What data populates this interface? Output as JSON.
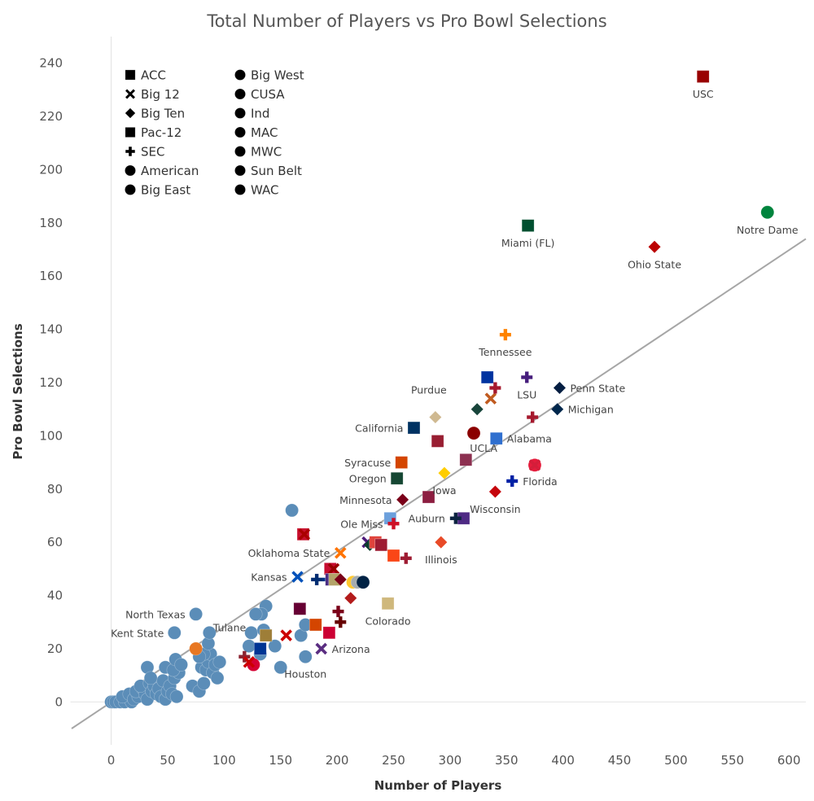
{
  "chart_data": {
    "type": "scatter",
    "title": "Total Number of Players vs Pro Bowl Selections",
    "xlabel": "Number of Players",
    "ylabel": "Pro Bowl Selections",
    "xlim": [
      -35,
      615
    ],
    "ylim": [
      -10,
      250
    ],
    "xticks": [
      0,
      50,
      100,
      150,
      200,
      250,
      300,
      350,
      400,
      450,
      500,
      550,
      600
    ],
    "yticks": [
      0,
      20,
      40,
      60,
      80,
      100,
      120,
      140,
      160,
      180,
      200,
      220,
      240
    ],
    "trendline": {
      "x1": -35,
      "y1": -10,
      "x2": 615,
      "y2": 174,
      "color": "#a6a6a6"
    },
    "default_color": "#5b8db8",
    "legend": [
      {
        "name": "ACC",
        "shape": "square"
      },
      {
        "name": "Big 12",
        "shape": "x"
      },
      {
        "name": "Big Ten",
        "shape": "diamond"
      },
      {
        "name": "Pac-12",
        "shape": "square"
      },
      {
        "name": "SEC",
        "shape": "plus"
      },
      {
        "name": "American",
        "shape": "circle"
      },
      {
        "name": "Big East",
        "shape": "circle"
      },
      {
        "name": "Big West",
        "shape": "circle"
      },
      {
        "name": "CUSA",
        "shape": "circle"
      },
      {
        "name": "Ind",
        "shape": "circle"
      },
      {
        "name": "MAC",
        "shape": "circle"
      },
      {
        "name": "MWC",
        "shape": "circle"
      },
      {
        "name": "Sun Belt",
        "shape": "circle"
      },
      {
        "name": "WAC",
        "shape": "circle"
      }
    ],
    "labeled_points": [
      {
        "name": "USC",
        "x": 524,
        "y": 235,
        "shape": "square",
        "color": "#990000",
        "label_pos": "below"
      },
      {
        "name": "Notre Dame",
        "x": 581,
        "y": 184,
        "shape": "circle",
        "color": "#00843d",
        "label_pos": "below"
      },
      {
        "name": "Miami (FL)",
        "x": 369,
        "y": 179,
        "shape": "square",
        "color": "#005030",
        "label_pos": "below"
      },
      {
        "name": "Ohio State",
        "x": 481,
        "y": 171,
        "shape": "diamond",
        "color": "#bb0000",
        "label_pos": "below"
      },
      {
        "name": "Tennessee",
        "x": 349,
        "y": 138,
        "shape": "plus",
        "color": "#ff8200",
        "label_pos": "below"
      },
      {
        "name": "Penn State",
        "x": 397,
        "y": 118,
        "shape": "diamond",
        "color": "#041e42",
        "label_pos": "right"
      },
      {
        "name": "LSU",
        "x": 368,
        "y": 122,
        "shape": "plus",
        "color": "#461d7c",
        "label_pos": "below"
      },
      {
        "name": "Michigan",
        "x": 395,
        "y": 110,
        "shape": "diamond",
        "color": "#00274c",
        "label_pos": "right"
      },
      {
        "name": "Purdue",
        "x": 287,
        "y": 107,
        "shape": "diamond",
        "color": "#cfb991",
        "label_pos": "above-left"
      },
      {
        "name": "California",
        "x": 268,
        "y": 103,
        "shape": "square",
        "color": "#003262",
        "label_pos": "left"
      },
      {
        "name": "Alabama",
        "x": 341,
        "y": 99,
        "shape": "square",
        "color": "#2f6fcf",
        "label_pos": "right"
      },
      {
        "name": "UCLA",
        "x": 314,
        "y": 91,
        "shape": "square",
        "color": "#8c3050",
        "label_pos": "right-up"
      },
      {
        "name": "Syracuse",
        "x": 257,
        "y": 90,
        "shape": "square",
        "color": "#d44500",
        "label_pos": "left"
      },
      {
        "name": "Oregon",
        "x": 253,
        "y": 84,
        "shape": "square",
        "color": "#154733",
        "label_pos": "left"
      },
      {
        "name": "Iowa",
        "x": 295,
        "y": 86,
        "shape": "diamond",
        "color": "#ffcd00",
        "label_pos": "below"
      },
      {
        "name": "Florida",
        "x": 355,
        "y": 83,
        "shape": "plus",
        "color": "#0021a5",
        "label_pos": "right"
      },
      {
        "name": "Minnesota",
        "x": 258,
        "y": 76,
        "shape": "diamond",
        "color": "#7a0019",
        "label_pos": "left"
      },
      {
        "name": "Wisconsin",
        "x": 340,
        "y": 79,
        "shape": "diamond",
        "color": "#c5050c",
        "label_pos": "below"
      },
      {
        "name": "Auburn",
        "x": 305,
        "y": 69,
        "shape": "plus",
        "color": "#0c2340",
        "label_pos": "left"
      },
      {
        "name": "Ole Miss",
        "x": 250,
        "y": 67,
        "shape": "plus",
        "color": "#ce1126",
        "label_pos": "left"
      },
      {
        "name": "Illinois",
        "x": 292,
        "y": 60,
        "shape": "diamond",
        "color": "#e84a27",
        "label_pos": "below"
      },
      {
        "name": "Oklahoma State",
        "x": 203,
        "y": 56,
        "shape": "x",
        "color": "#ff7300",
        "label_pos": "left"
      },
      {
        "name": "Kansas",
        "x": 165,
        "y": 47,
        "shape": "x",
        "color": "#0051ba",
        "label_pos": "left"
      },
      {
        "name": "North Texas",
        "x": 75,
        "y": 33,
        "shape": "circle",
        "color": "#5b8db8",
        "label_pos": "left"
      },
      {
        "name": "Tulane",
        "x": 128,
        "y": 33,
        "shape": "circle",
        "color": "#5b8db8",
        "label_pos": "left-down"
      },
      {
        "name": "Colorado",
        "x": 245,
        "y": 37,
        "shape": "square",
        "color": "#cfb87c",
        "label_pos": "below"
      },
      {
        "name": "Kent State",
        "x": 56,
        "y": 26,
        "shape": "circle",
        "color": "#5b8db8",
        "label_pos": "left"
      },
      {
        "name": "Arizona",
        "x": 186,
        "y": 20,
        "shape": "x",
        "color": "#5a2d81",
        "label_pos": "right"
      },
      {
        "name": "Houston",
        "x": 172,
        "y": 17,
        "shape": "circle",
        "color": "#5b8db8",
        "label_pos": "below"
      }
    ],
    "points": [
      {
        "x": 0,
        "y": 0
      },
      {
        "x": 2,
        "y": 0
      },
      {
        "x": 4,
        "y": 0
      },
      {
        "x": 8,
        "y": 0
      },
      {
        "x": 12,
        "y": 0
      },
      {
        "x": 18,
        "y": 0
      },
      {
        "x": 10,
        "y": 2
      },
      {
        "x": 16,
        "y": 3
      },
      {
        "x": 20,
        "y": 1
      },
      {
        "x": 24,
        "y": 2
      },
      {
        "x": 22,
        "y": 4
      },
      {
        "x": 28,
        "y": 5
      },
      {
        "x": 30,
        "y": 3
      },
      {
        "x": 32,
        "y": 1
      },
      {
        "x": 26,
        "y": 6
      },
      {
        "x": 34,
        "y": 7
      },
      {
        "x": 36,
        "y": 4
      },
      {
        "x": 38,
        "y": 6
      },
      {
        "x": 40,
        "y": 3
      },
      {
        "x": 42,
        "y": 5
      },
      {
        "x": 44,
        "y": 2
      },
      {
        "x": 46,
        "y": 8
      },
      {
        "x": 48,
        "y": 1
      },
      {
        "x": 50,
        "y": 4
      },
      {
        "x": 52,
        "y": 6
      },
      {
        "x": 54,
        "y": 3
      },
      {
        "x": 56,
        "y": 9
      },
      {
        "x": 58,
        "y": 2
      },
      {
        "x": 60,
        "y": 11
      },
      {
        "x": 32,
        "y": 13
      },
      {
        "x": 35,
        "y": 9
      },
      {
        "x": 48,
        "y": 13
      },
      {
        "x": 55,
        "y": 12
      },
      {
        "x": 57,
        "y": 16
      },
      {
        "x": 62,
        "y": 14
      },
      {
        "x": 72,
        "y": 6
      },
      {
        "x": 78,
        "y": 4
      },
      {
        "x": 82,
        "y": 7
      },
      {
        "x": 80,
        "y": 13
      },
      {
        "x": 84,
        "y": 12
      },
      {
        "x": 86,
        "y": 15
      },
      {
        "x": 88,
        "y": 18
      },
      {
        "x": 90,
        "y": 11
      },
      {
        "x": 92,
        "y": 14
      },
      {
        "x": 94,
        "y": 9
      },
      {
        "x": 96,
        "y": 15
      },
      {
        "x": 82,
        "y": 18
      },
      {
        "x": 86,
        "y": 22
      },
      {
        "x": 87,
        "y": 26
      },
      {
        "x": 78,
        "y": 17
      },
      {
        "x": 122,
        "y": 21
      },
      {
        "x": 124,
        "y": 26
      },
      {
        "x": 132,
        "y": 18
      },
      {
        "x": 135,
        "y": 27
      },
      {
        "x": 137,
        "y": 36
      },
      {
        "x": 133,
        "y": 33
      },
      {
        "x": 145,
        "y": 21
      },
      {
        "x": 150,
        "y": 13
      },
      {
        "x": 160,
        "y": 72
      },
      {
        "x": 168,
        "y": 25
      },
      {
        "x": 172,
        "y": 29
      },
      {
        "x": 75,
        "y": 20,
        "color": "#e87722"
      },
      {
        "x": 126,
        "y": 14,
        "color": "#d50032"
      },
      {
        "x": 118,
        "y": 17,
        "shape": "plus",
        "color": "#8b2331"
      },
      {
        "x": 122,
        "y": 15,
        "shape": "x",
        "color": "#cc0000"
      },
      {
        "x": 170,
        "y": 63,
        "shape": "square",
        "color": "#c8102e"
      },
      {
        "x": 171,
        "y": 63,
        "shape": "x",
        "color": "#aa0000"
      },
      {
        "x": 194,
        "y": 50,
        "shape": "square",
        "color": "#c60c30"
      },
      {
        "x": 197,
        "y": 50,
        "shape": "x",
        "color": "#990000"
      },
      {
        "x": 192,
        "y": 46,
        "shape": "plus",
        "color": "#003087"
      },
      {
        "x": 195,
        "y": 46,
        "shape": "square",
        "color": "#4b2e83"
      },
      {
        "x": 198,
        "y": 46,
        "shape": "square",
        "color": "#b3a369"
      },
      {
        "x": 182,
        "y": 46,
        "shape": "plus",
        "color": "#002d72"
      },
      {
        "x": 203,
        "y": 46,
        "shape": "diamond",
        "color": "#7a0019"
      },
      {
        "x": 214,
        "y": 45,
        "color": "#ffc72c"
      },
      {
        "x": 218,
        "y": 45,
        "color": "#a5acaf"
      },
      {
        "x": 223,
        "y": 45,
        "color": "#002244"
      },
      {
        "x": 212,
        "y": 39,
        "shape": "diamond",
        "color": "#b31b1b"
      },
      {
        "x": 201,
        "y": 34,
        "shape": "plus",
        "color": "#7a0019"
      },
      {
        "x": 203,
        "y": 30,
        "shape": "plus",
        "color": "#660000"
      },
      {
        "x": 167,
        "y": 35,
        "shape": "square",
        "color": "#660033"
      },
      {
        "x": 181,
        "y": 29,
        "shape": "square",
        "color": "#d44500"
      },
      {
        "x": 193,
        "y": 26,
        "shape": "square",
        "color": "#cc0033"
      },
      {
        "x": 155,
        "y": 25,
        "shape": "x",
        "color": "#cc0000"
      },
      {
        "x": 137,
        "y": 25,
        "shape": "square",
        "color": "#9e7e38"
      },
      {
        "x": 132,
        "y": 20,
        "shape": "square",
        "color": "#003594"
      },
      {
        "x": 227,
        "y": 60,
        "shape": "x",
        "color": "#4d1979"
      },
      {
        "x": 229,
        "y": 59,
        "shape": "diamond",
        "color": "#0b3d2e"
      },
      {
        "x": 234,
        "y": 60,
        "shape": "square",
        "color": "#e0443c"
      },
      {
        "x": 239,
        "y": 59,
        "shape": "square",
        "color": "#9e1b32"
      },
      {
        "x": 250,
        "y": 55,
        "shape": "square",
        "color": "#fa4616"
      },
      {
        "x": 261,
        "y": 54,
        "shape": "plus",
        "color": "#9e1b32"
      },
      {
        "x": 247,
        "y": 69,
        "shape": "square",
        "color": "#6ca0dc"
      },
      {
        "x": 281,
        "y": 77,
        "shape": "square",
        "color": "#8c1d40"
      },
      {
        "x": 289,
        "y": 98,
        "shape": "square",
        "color": "#981e32"
      },
      {
        "x": 312,
        "y": 69,
        "shape": "square",
        "color": "#4e2a84"
      },
      {
        "x": 321,
        "y": 101,
        "color": "#8b0000"
      },
      {
        "x": 324,
        "y": 110,
        "shape": "diamond",
        "color": "#18453b"
      },
      {
        "x": 333,
        "y": 122,
        "shape": "square",
        "color": "#0033a0"
      },
      {
        "x": 336,
        "y": 114,
        "shape": "x",
        "color": "#c05b20"
      },
      {
        "x": 340,
        "y": 118,
        "shape": "plus",
        "color": "#a6192e"
      },
      {
        "x": 373,
        "y": 107,
        "shape": "plus",
        "color": "#a6192e"
      },
      {
        "x": 375,
        "y": 89,
        "color": "#e51c3c"
      },
      {
        "x": 375,
        "y": 89,
        "shape": "x",
        "color": "#d41e3a"
      }
    ]
  }
}
